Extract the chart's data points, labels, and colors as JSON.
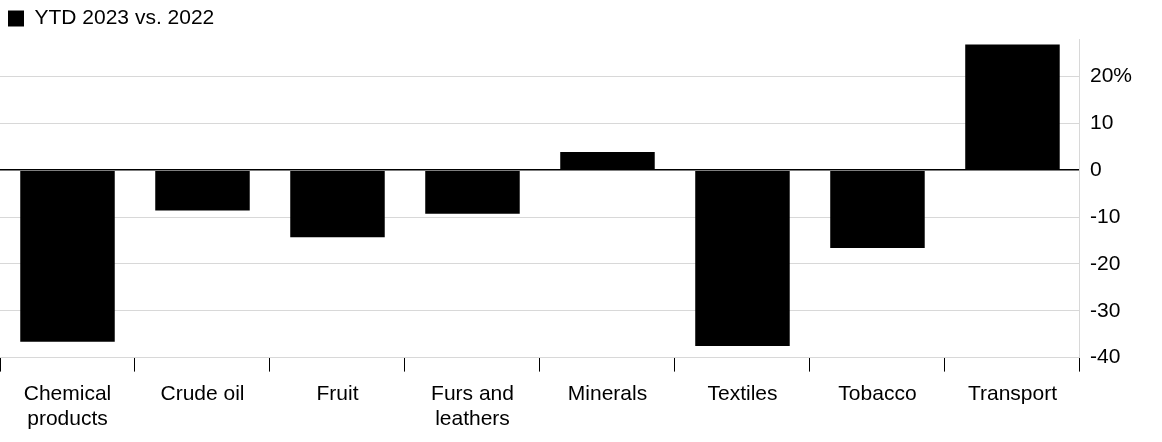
{
  "chart_data": {
    "type": "bar",
    "categories": [
      "Chemical products",
      "Crude oil",
      "Fruit",
      "Furs and leathers",
      "Minerals",
      "Textiles",
      "Tobacco",
      "Transport"
    ],
    "series": [
      {
        "name": "YTD 2023 vs. 2022",
        "color": "#000000",
        "values": [
          -36.6,
          -8.6,
          -14.3,
          -9.3,
          3.9,
          -37.5,
          -16.6,
          26.8
        ]
      }
    ],
    "ylim": [
      -40,
      28
    ],
    "yticks": [
      {
        "value": -40,
        "label": "-40"
      },
      {
        "value": -30,
        "label": "-30"
      },
      {
        "value": -20,
        "label": "-20"
      },
      {
        "value": -10,
        "label": "-10"
      },
      {
        "value": 0,
        "label": "0"
      },
      {
        "value": 10,
        "label": "10"
      },
      {
        "value": 20,
        "label": "20%"
      }
    ],
    "grid": "y",
    "legend": "top left"
  }
}
